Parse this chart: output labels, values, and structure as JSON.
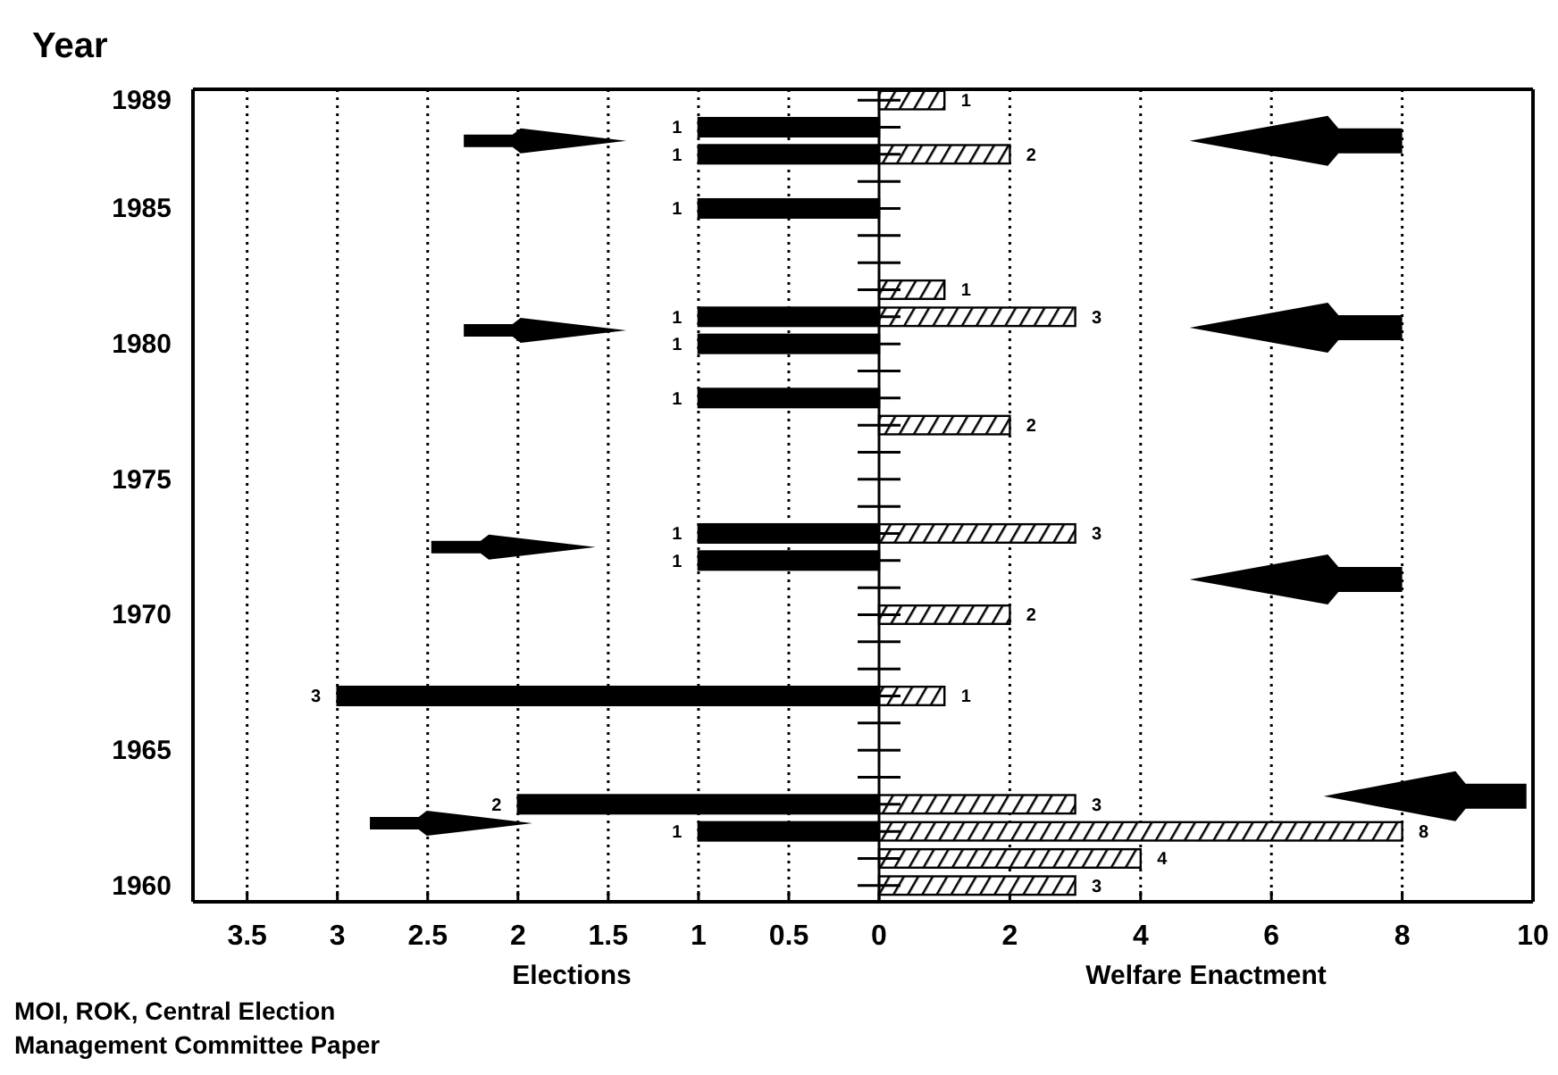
{
  "chart_data": [
    {
      "type": "bar",
      "orientation": "horizontal",
      "ylabel": "Year",
      "xlabel": "Elections",
      "annotations": [
        "MOI, ROK, Central Election Management Committee Paper"
      ],
      "x": [
        1988,
        1987,
        1985,
        1981,
        1980,
        1978,
        1973,
        1972,
        1967,
        1963,
        1962
      ],
      "series": [
        {
          "color": "#000000",
          "values": [
            1,
            1,
            1,
            1,
            1,
            1,
            1,
            1,
            3,
            2,
            1
          ]
        }
      ],
      "xlim": [
        3.8,
        0
      ],
      "xticks": [
        {
          "value": 3.5,
          "label": "3.5"
        },
        3,
        {
          "value": 2.5,
          "label": "2.5"
        },
        2,
        {
          "value": 1.5,
          "label": "1.5"
        },
        1,
        {
          "value": 0.5,
          "label": "0.5"
        },
        0
      ],
      "ylim": [
        1959.4,
        1989.4
      ],
      "yticks": [
        1960,
        1965,
        1970,
        1975,
        1980,
        1985,
        1989
      ],
      "data_labels": true,
      "grid": "x"
    },
    {
      "type": "bar",
      "orientation": "horizontal",
      "xlabel": "Welfare Enactment",
      "x": [
        1989,
        1987,
        1982,
        1981,
        1977,
        1973,
        1970,
        1967,
        1963,
        1962,
        1961,
        1960
      ],
      "series": [
        {
          "color": "#000000",
          "values": [
            1,
            2,
            1,
            3,
            2,
            3,
            2,
            1,
            3,
            8,
            4,
            3
          ]
        }
      ],
      "xlim": [
        0,
        10
      ],
      "xticks": [
        2,
        4,
        6,
        8,
        10
      ],
      "ylim": [
        1959.4,
        1989.4
      ],
      "tick_labels": "x",
      "data_labels": true,
      "grid": "x"
    }
  ]
}
